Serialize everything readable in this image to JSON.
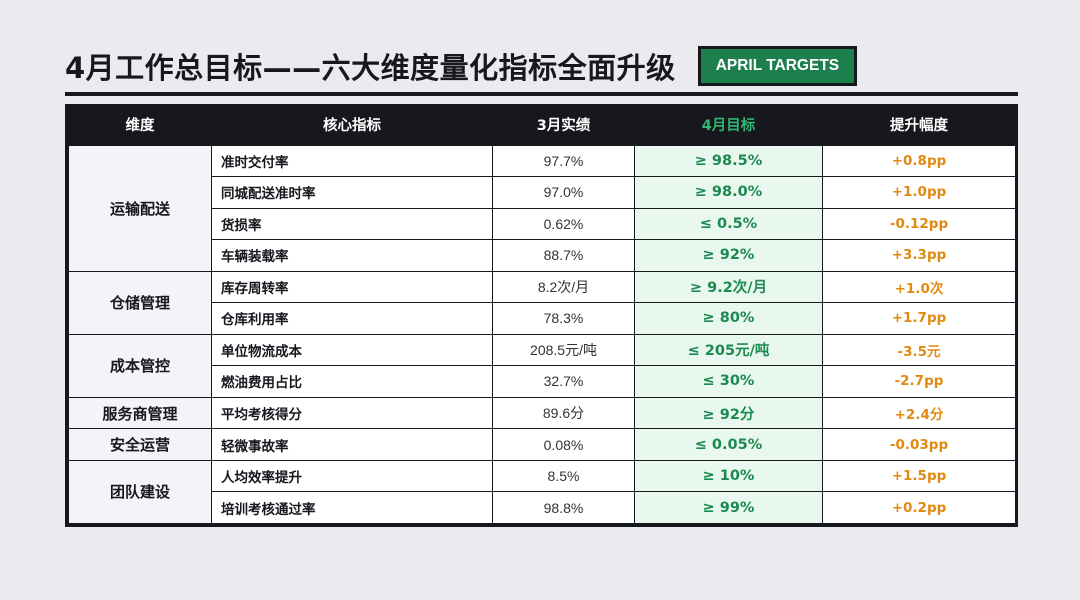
{
  "header": {
    "title": "4月工作总目标——六大维度量化指标全面升级",
    "badge": "APRIL TARGETS"
  },
  "table": {
    "columns": [
      "维度",
      "核心指标",
      "3月实绩",
      "4月目标",
      "提升幅度"
    ],
    "groups": [
      {
        "dimension": "运输配送",
        "rows": [
          {
            "metric": "准时交付率",
            "march": "97.7%",
            "target": "≥ 98.5%",
            "lift": "+0.8pp"
          },
          {
            "metric": "同城配送准时率",
            "march": "97.0%",
            "target": "≥ 98.0%",
            "lift": "+1.0pp"
          },
          {
            "metric": "货损率",
            "march": "0.62%",
            "target": "≤ 0.5%",
            "lift": "-0.12pp"
          },
          {
            "metric": "车辆装载率",
            "march": "88.7%",
            "target": "≥ 92%",
            "lift": "+3.3pp"
          }
        ]
      },
      {
        "dimension": "仓储管理",
        "rows": [
          {
            "metric": "库存周转率",
            "march": "8.2次/月",
            "target": "≥ 9.2次/月",
            "lift": "+1.0次"
          },
          {
            "metric": "仓库利用率",
            "march": "78.3%",
            "target": "≥ 80%",
            "lift": "+1.7pp"
          }
        ]
      },
      {
        "dimension": "成本管控",
        "rows": [
          {
            "metric": "单位物流成本",
            "march": "208.5元/吨",
            "target": "≤ 205元/吨",
            "lift": "-3.5元"
          },
          {
            "metric": "燃油费用占比",
            "march": "32.7%",
            "target": "≤ 30%",
            "lift": "-2.7pp"
          }
        ]
      },
      {
        "dimension": "服务商管理",
        "rows": [
          {
            "metric": "平均考核得分",
            "march": "89.6分",
            "target": "≥ 92分",
            "lift": "+2.4分"
          }
        ]
      },
      {
        "dimension": "安全运营",
        "rows": [
          {
            "metric": "轻微事故率",
            "march": "0.08%",
            "target": "≤ 0.05%",
            "lift": "-0.03pp"
          }
        ]
      },
      {
        "dimension": "团队建设",
        "rows": [
          {
            "metric": "人均效率提升",
            "march": "8.5%",
            "target": "≥ 10%",
            "lift": "+1.5pp"
          },
          {
            "metric": "培训考核通过率",
            "march": "98.8%",
            "target": "≥ 99%",
            "lift": "+0.2pp"
          }
        ]
      }
    ]
  },
  "colors": {
    "dark": "#16181d",
    "accent_green": "#1e7f4e",
    "target_text": "#1c8a50",
    "target_bg": "#e9f8ee",
    "lift_orange": "#e08a12",
    "page_bg": "#eaebef"
  }
}
